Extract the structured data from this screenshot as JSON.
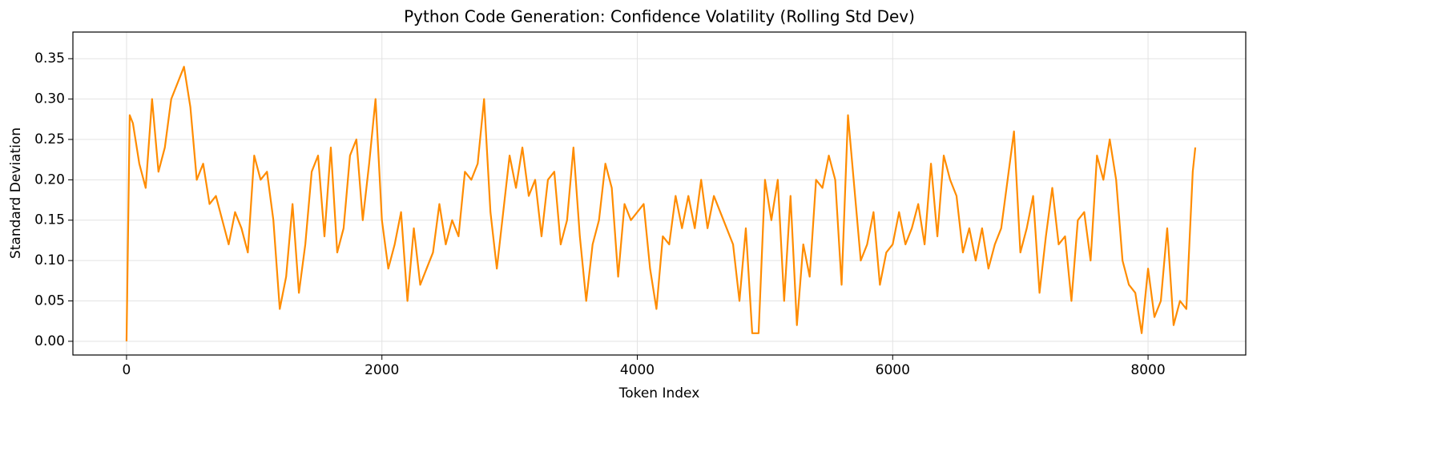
{
  "chart_data": {
    "type": "line",
    "title": "Python Code Generation: Confidence Volatility (Rolling Std Dev)",
    "x_label": "Token Index",
    "y_label": "Standard Deviation",
    "color": "#ff8c00",
    "grid": true,
    "xlim": [
      -420,
      8765
    ],
    "ylim": [
      -0.017,
      0.383
    ],
    "xticks": [
      0,
      2000,
      4000,
      6000,
      8000
    ],
    "yticks": [
      {
        "value": 0,
        "label": "0.00"
      },
      0.05,
      {
        "value": 0.1,
        "label": "0.10"
      },
      0.15,
      {
        "value": 0.2,
        "label": "0.20"
      },
      0.25,
      {
        "value": 0.3,
        "label": "0.30"
      },
      0.35
    ],
    "x": [
      0,
      25,
      50,
      100,
      150,
      200,
      250,
      300,
      350,
      400,
      450,
      500,
      550,
      600,
      650,
      700,
      750,
      800,
      850,
      900,
      950,
      1000,
      1050,
      1100,
      1150,
      1200,
      1250,
      1300,
      1350,
      1400,
      1450,
      1500,
      1550,
      1600,
      1650,
      1700,
      1750,
      1800,
      1850,
      1900,
      1950,
      2000,
      2050,
      2100,
      2150,
      2200,
      2250,
      2300,
      2350,
      2400,
      2450,
      2500,
      2550,
      2600,
      2650,
      2700,
      2750,
      2800,
      2850,
      2900,
      2950,
      3000,
      3050,
      3100,
      3150,
      3200,
      3250,
      3300,
      3350,
      3400,
      3450,
      3500,
      3550,
      3600,
      3650,
      3700,
      3750,
      3800,
      3850,
      3900,
      3950,
      4000,
      4050,
      4100,
      4150,
      4200,
      4250,
      4300,
      4350,
      4400,
      4450,
      4500,
      4550,
      4600,
      4650,
      4700,
      4750,
      4800,
      4850,
      4900,
      4950,
      5000,
      5050,
      5100,
      5150,
      5200,
      5250,
      5300,
      5350,
      5400,
      5450,
      5500,
      5550,
      5600,
      5650,
      5700,
      5750,
      5800,
      5850,
      5900,
      5950,
      6000,
      6050,
      6100,
      6150,
      6200,
      6250,
      6300,
      6350,
      6400,
      6450,
      6500,
      6550,
      6600,
      6650,
      6700,
      6750,
      6800,
      6850,
      6900,
      6950,
      7000,
      7050,
      7100,
      7150,
      7200,
      7250,
      7300,
      7350,
      7400,
      7450,
      7500,
      7550,
      7600,
      7650,
      7700,
      7750,
      7800,
      7850,
      7900,
      7950,
      8000,
      8050,
      8100,
      8150,
      8200,
      8250,
      8300,
      8350,
      8370
    ],
    "values": [
      0.0,
      0.28,
      0.27,
      0.22,
      0.19,
      0.3,
      0.21,
      0.24,
      0.3,
      0.32,
      0.34,
      0.29,
      0.2,
      0.22,
      0.17,
      0.18,
      0.15,
      0.12,
      0.16,
      0.14,
      0.11,
      0.23,
      0.2,
      0.21,
      0.15,
      0.04,
      0.08,
      0.17,
      0.06,
      0.12,
      0.21,
      0.23,
      0.13,
      0.24,
      0.11,
      0.14,
      0.23,
      0.25,
      0.15,
      0.22,
      0.3,
      0.15,
      0.09,
      0.12,
      0.16,
      0.05,
      0.14,
      0.07,
      0.09,
      0.11,
      0.17,
      0.12,
      0.15,
      0.13,
      0.21,
      0.2,
      0.22,
      0.3,
      0.16,
      0.09,
      0.16,
      0.23,
      0.19,
      0.24,
      0.18,
      0.2,
      0.13,
      0.2,
      0.21,
      0.12,
      0.15,
      0.24,
      0.13,
      0.05,
      0.12,
      0.15,
      0.22,
      0.19,
      0.08,
      0.17,
      0.15,
      0.16,
      0.17,
      0.09,
      0.04,
      0.13,
      0.12,
      0.18,
      0.14,
      0.18,
      0.14,
      0.2,
      0.14,
      0.18,
      0.16,
      0.14,
      0.12,
      0.05,
      0.14,
      0.01,
      0.01,
      0.2,
      0.15,
      0.2,
      0.05,
      0.18,
      0.02,
      0.12,
      0.08,
      0.2,
      0.19,
      0.23,
      0.2,
      0.07,
      0.28,
      0.19,
      0.1,
      0.12,
      0.16,
      0.07,
      0.11,
      0.12,
      0.16,
      0.12,
      0.14,
      0.17,
      0.12,
      0.22,
      0.13,
      0.23,
      0.2,
      0.18,
      0.11,
      0.14,
      0.1,
      0.14,
      0.09,
      0.12,
      0.14,
      0.2,
      0.26,
      0.11,
      0.14,
      0.18,
      0.06,
      0.13,
      0.19,
      0.12,
      0.13,
      0.05,
      0.15,
      0.16,
      0.1,
      0.23,
      0.2,
      0.25,
      0.2,
      0.1,
      0.07,
      0.06,
      0.01,
      0.09,
      0.03,
      0.05,
      0.14,
      0.02,
      0.05,
      0.04,
      0.21,
      0.24
    ]
  }
}
